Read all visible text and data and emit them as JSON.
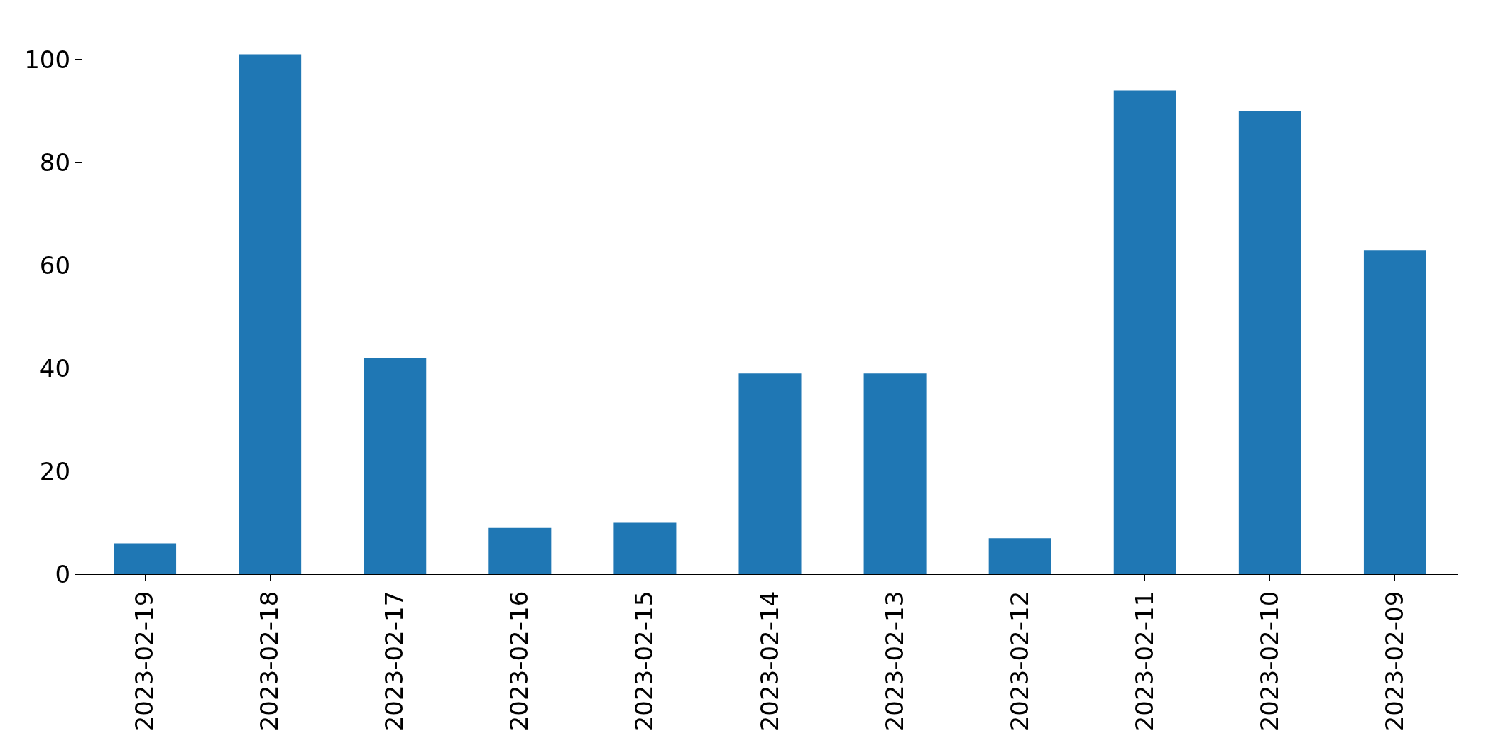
{
  "chart_data": {
    "type": "bar",
    "categories": [
      "2023-02-19",
      "2023-02-18",
      "2023-02-17",
      "2023-02-16",
      "2023-02-15",
      "2023-02-14",
      "2023-02-13",
      "2023-02-12",
      "2023-02-11",
      "2023-02-10",
      "2023-02-09"
    ],
    "values": [
      6,
      101,
      42,
      9,
      10,
      39,
      39,
      7,
      94,
      90,
      63
    ],
    "color": "#1f77b4",
    "ylim": [
      0,
      106.05
    ],
    "yticks": [
      0,
      20,
      40,
      60,
      80,
      100
    ],
    "grid": false
  }
}
